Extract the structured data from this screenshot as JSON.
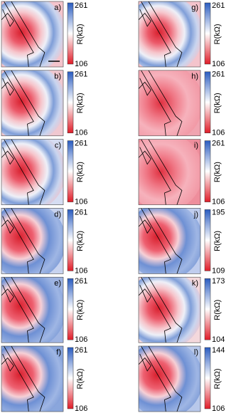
{
  "panels": [
    {
      "label": "a)",
      "cbar_max": "261",
      "cbar_min": "106",
      "cbar_label": "R(kΩ)"
    },
    {
      "label": "b)",
      "cbar_max": "261",
      "cbar_min": "106",
      "cbar_label": "R(kΩ)"
    },
    {
      "label": "c)",
      "cbar_max": "261",
      "cbar_min": "106",
      "cbar_label": "R(kΩ)"
    },
    {
      "label": "d)",
      "cbar_max": "261",
      "cbar_min": "106",
      "cbar_label": "R(kΩ)"
    },
    {
      "label": "e)",
      "cbar_max": "261",
      "cbar_min": "106",
      "cbar_label": "R(kΩ)"
    },
    {
      "label": "f)",
      "cbar_max": "261",
      "cbar_min": "106",
      "cbar_label": "R(kΩ)"
    },
    {
      "label": "g)",
      "cbar_max": "261",
      "cbar_min": "106",
      "cbar_label": "R(kΩ)"
    },
    {
      "label": "h)",
      "cbar_max": "261",
      "cbar_min": "106",
      "cbar_label": "R(kΩ)"
    },
    {
      "label": "i)",
      "cbar_max": "261",
      "cbar_min": "106",
      "cbar_label": "R(kΩ)"
    },
    {
      "label": "j)",
      "cbar_max": "195",
      "cbar_min": "109",
      "cbar_label": "R(kΩ)"
    },
    {
      "label": "k)",
      "cbar_max": "173",
      "cbar_min": "104",
      "cbar_label": "R(kΩ)"
    },
    {
      "label": "l)",
      "cbar_max": "144",
      "cbar_min": "106",
      "cbar_label": "R(kΩ)"
    }
  ]
}
